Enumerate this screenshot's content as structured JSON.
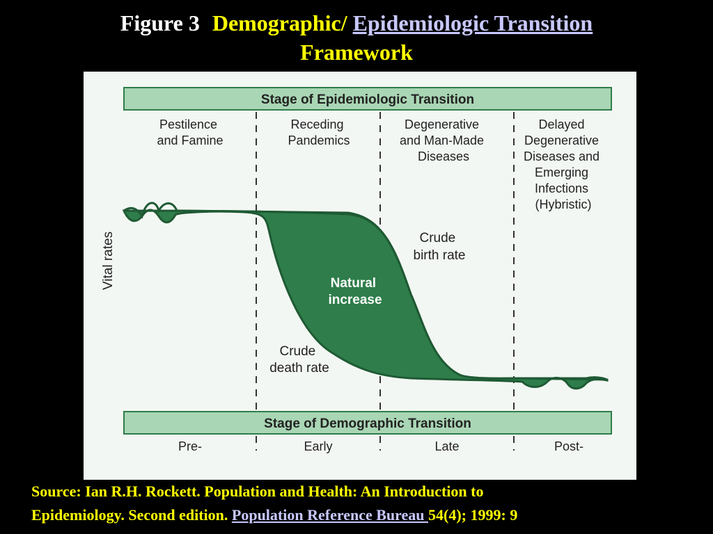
{
  "title": {
    "figure_label": "Figure 3",
    "part1": "Demographic/",
    "link": "Epidemiologic Transition",
    "part2": "Framework"
  },
  "diagram": {
    "top_header": "Stage of Epidemiologic Transition",
    "epi_stages": [
      [
        "Pestilence",
        "and Famine"
      ],
      [
        "Receding",
        "Pandemics"
      ],
      [
        "Degenerative",
        "and Man-Made",
        "Diseases"
      ],
      [
        "Delayed",
        "Degenerative",
        "Diseases and",
        "Emerging",
        "Infections",
        "(Hybristic)"
      ]
    ],
    "y_axis_label": "Vital rates",
    "birth_rate_label": [
      "Crude",
      "birth rate"
    ],
    "natural_increase_label": [
      "Natural",
      "increase"
    ],
    "death_rate_label": [
      "Crude",
      "death rate"
    ],
    "bottom_header": "Stage of Demographic Transition",
    "demo_stages": [
      "Pre-",
      "Early",
      "Late",
      "Post-"
    ],
    "colors": {
      "green": "#2e7d4a",
      "header_bg": "#a9d6b4",
      "header_border": "#2e7d4a"
    }
  },
  "source": {
    "line1": "Source:  Ian R.H. Rockett.  Population and Health: An Introduction to",
    "line2_prefix": "Epidemiology. Second edition.  ",
    "link": "Population Reference Bureau ",
    "line2_suffix": " 54(4); 1999: 9"
  }
}
